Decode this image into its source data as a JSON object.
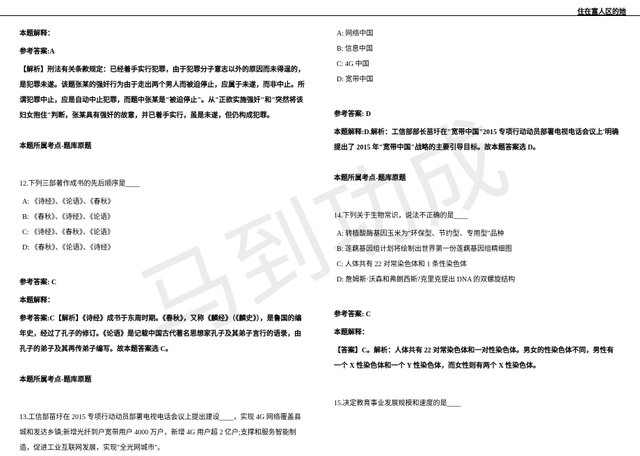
{
  "header": {
    "right_text": "住在富人区的她"
  },
  "watermark": "马到功成",
  "left_column": {
    "explain_label": "本题解释：",
    "answer_label": "参考答案:A",
    "analysis": "【解析】刑法有关条款规定：已经着手实行犯罪，由于犯罪分子意志以外的原因而未得逞的，是犯罪未遂。该题张某的强奸行为由于走出两个男人而被迫停止，应属于未遂，而非中止。所谓犯罪中止，应是自动中止犯罪，而题中张某是\"被迫停止\"。从\"正欲实施强奸\"和\"突然将该妇女抱住\"判断，张某具有强奸的故意，并已着手实行，虽是未遂，但仍构成犯罪。",
    "topic_label": "本题所属考点-题库原题",
    "q12": {
      "stem": "12.下列三部著作成书的先后顺序是____",
      "a": "A: 《诗经》、《论语》、《春秋》",
      "b": "B: 《春秋》、《诗经》、《论语》",
      "c": "C: 《诗经》、《春秋》、《论语》",
      "d": "D: 《春秋》、《论语》、《诗经》"
    },
    "q12_answer_label": "参考答案: C",
    "q12_explain_label": "本题解释：",
    "q12_analysis": "参考答案:C【解析】《诗经》成书于东周时期。《春秋》，又称《麟经》（《麟史》），是鲁国的编年史，经过了孔子的修订。《论语》是记载中国古代著名思想家孔子及其弟子言行的语录，由孔子的弟子及其再传弟子编写。故本题答案选 C。",
    "q12_topic_label": "本题所属考点-题库原题",
    "q13_stem": "13.工信部苗圩在 2015 专项行动动员部署电视电话会议上提出建设____，实现 4G 网络覆盖县城和发达乡镇;新增光纤到户宽带用户 4000 万户，新增 4G 用户超 2 亿户;支撑和服务智能制造，促进工业互联网发展，实现\"全光网城市\"。"
  },
  "right_column": {
    "q13_options": {
      "a": "A: 网络中国",
      "b": "B: 信息中国",
      "c": "C: 4G 中国",
      "d": "D: 宽带中国"
    },
    "q13_answer_label": "参考答案: D",
    "q13_explain": "本题解释:D.解析：工信部部长苗圩在\"宽带中国\"2015 专项行动动员部署电视电话会议上'明确提出了 2015 年\"宽带中国\"战略的主要引导目标。故本题答案选 D。",
    "q13_topic_label": "本题所属考点-题库原题",
    "q14": {
      "stem": "14.下列关于生物常识，说法不正确的是____",
      "a": "A: 转植酸酶基因玉米为\"环保型、节约型、专用型\"品种",
      "b": "B: 莲藕基因组计划将绘制出世界第一份莲藕基因组精细图",
      "c": "C: 人体共有 22 对常染色体和 1 条性染色体",
      "d": "D: 詹姆斯·沃森和弗朗西斯?克里克提出 DNA 的双螺旋结构"
    },
    "q14_answer_label": "参考答案: C",
    "q14_explain_label": "本题解释：",
    "q14_analysis": "【答案】C。解析：人体共有 22 对常染色体和一对性染色体。男女的性染色体不同，男性有一个 X 性染色体和一个 Y 性染色体，而女性则有两个 X 性染色体。",
    "q15_stem": "15.决定教育事业发展规模和速度的是____"
  }
}
